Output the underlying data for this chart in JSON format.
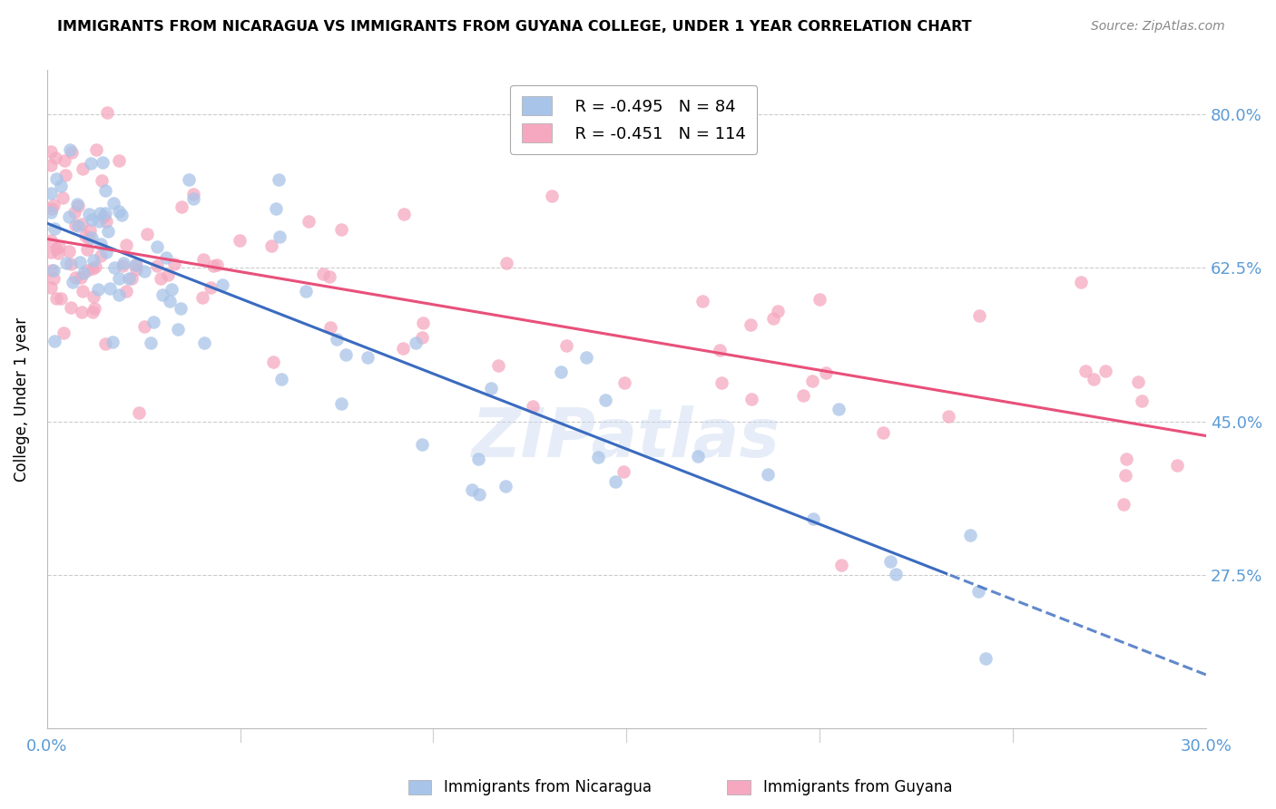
{
  "title": "IMMIGRANTS FROM NICARAGUA VS IMMIGRANTS FROM GUYANA COLLEGE, UNDER 1 YEAR CORRELATION CHART",
  "source": "Source: ZipAtlas.com",
  "ylabel": "College, Under 1 year",
  "xlim": [
    0.0,
    0.3
  ],
  "ylim": [
    0.1,
    0.85
  ],
  "xticks": [
    0.0,
    0.05,
    0.1,
    0.15,
    0.2,
    0.25,
    0.3
  ],
  "xticklabels": [
    "0.0%",
    "",
    "",
    "",
    "",
    "",
    "30.0%"
  ],
  "ytick_positions": [
    0.275,
    0.45,
    0.625,
    0.8
  ],
  "ytick_labels": [
    "27.5%",
    "45.0%",
    "62.5%",
    "80.0%"
  ],
  "legend_R1": "-0.495",
  "legend_N1": "84",
  "legend_R2": "-0.451",
  "legend_N2": "114",
  "color_nicaragua": "#a8c4e8",
  "color_guyana": "#f5a8c0",
  "color_line_nicaragua": "#3a6bbf",
  "color_line_guyana": "#e8507a",
  "color_axis_labels": "#5b9bd5",
  "watermark": "ZIPatlas",
  "bottom_legend1": "Immigrants from Nicaragua",
  "bottom_legend2": "Immigrants from Guyana"
}
